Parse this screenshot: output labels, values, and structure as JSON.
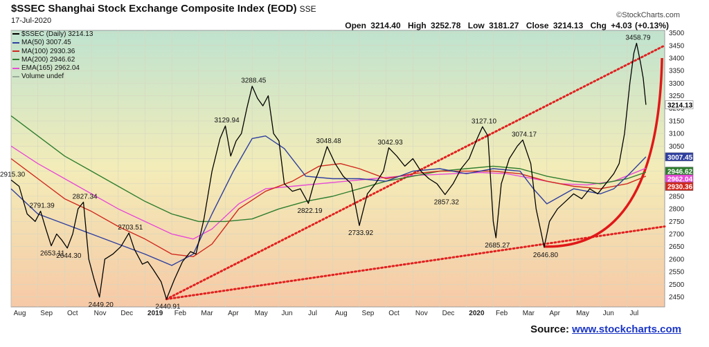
{
  "header": {
    "symbol": "$SSEC",
    "name": "Shanghai Stock Exchange Composite Index (EOD)",
    "exchange": "SSE",
    "date": "17-Jul-2020",
    "brand": "©StockCharts.com",
    "open_label": "Open",
    "open": "3214.40",
    "high_label": "High",
    "high": "3252.78",
    "low_label": "Low",
    "low": "3181.27",
    "close_label": "Close",
    "close": "3214.13",
    "chg_label": "Chg",
    "chg": "+4.03 (+0.13%)"
  },
  "legend": [
    {
      "label": "$SSEC (Daily) 3214.13",
      "color": "#000000"
    },
    {
      "label": "MA(50) 3007.45",
      "color": "#2f3fa0"
    },
    {
      "label": "MA(100) 2930.36",
      "color": "#d0281e"
    },
    {
      "label": "MA(200) 2946.62",
      "color": "#2e7d2e"
    },
    {
      "label": "EMA(165) 2962.04",
      "color": "#e84ad6"
    },
    {
      "label": "Volume undef",
      "color": "#9aa89a"
    }
  ],
  "source": {
    "label": "Source:",
    "link": "www.stockcharts.com"
  },
  "chart_data": {
    "type": "line",
    "title": "Shanghai Stock Exchange Composite Index (EOD)",
    "ylim": [
      2410,
      3510
    ],
    "yticks": [
      2450,
      2500,
      2550,
      2600,
      2650,
      2700,
      2750,
      2800,
      2850,
      2900,
      2950,
      3000,
      3050,
      3100,
      3150,
      3200,
      3250,
      3300,
      3350,
      3400,
      3450,
      3500
    ],
    "x_range_months": [
      0,
      24.4
    ],
    "month_ticks": [
      {
        "label": "Aug",
        "m": 0.3
      },
      {
        "label": "Sep",
        "m": 1.3
      },
      {
        "label": "Oct",
        "m": 2.3
      },
      {
        "label": "Nov",
        "m": 3.3
      },
      {
        "label": "Dec",
        "m": 4.3
      },
      {
        "label": "2019",
        "m": 5.3,
        "bold": true
      },
      {
        "label": "Feb",
        "m": 6.3
      },
      {
        "label": "Mar",
        "m": 7.3
      },
      {
        "label": "Apr",
        "m": 8.3
      },
      {
        "label": "May",
        "m": 9.3
      },
      {
        "label": "Jun",
        "m": 10.3
      },
      {
        "label": "Jul",
        "m": 11.3
      },
      {
        "label": "Aug",
        "m": 12.3
      },
      {
        "label": "Sep",
        "m": 13.3
      },
      {
        "label": "Oct",
        "m": 14.3
      },
      {
        "label": "Nov",
        "m": 15.3
      },
      {
        "label": "Dec",
        "m": 16.3
      },
      {
        "label": "2020",
        "m": 17.3,
        "bold": true
      },
      {
        "label": "Feb",
        "m": 18.3
      },
      {
        "label": "Mar",
        "m": 19.3
      },
      {
        "label": "Apr",
        "m": 20.3
      },
      {
        "label": "May",
        "m": 21.3
      },
      {
        "label": "Jun",
        "m": 22.3
      },
      {
        "label": "Jul",
        "m": 23.3
      }
    ],
    "series": [
      {
        "name": "$SSEC (Daily)",
        "color": "#000000",
        "points": [
          [
            0,
            2915
          ],
          [
            0.3,
            2890
          ],
          [
            0.6,
            2780
          ],
          [
            0.9,
            2750
          ],
          [
            1.1,
            2791
          ],
          [
            1.3,
            2720
          ],
          [
            1.5,
            2653
          ],
          [
            1.7,
            2700
          ],
          [
            1.9,
            2675
          ],
          [
            2.1,
            2644
          ],
          [
            2.3,
            2700
          ],
          [
            2.5,
            2800
          ],
          [
            2.7,
            2827
          ],
          [
            2.9,
            2600
          ],
          [
            3.1,
            2520
          ],
          [
            3.3,
            2449
          ],
          [
            3.5,
            2600
          ],
          [
            3.8,
            2620
          ],
          [
            4.1,
            2650
          ],
          [
            4.4,
            2704
          ],
          [
            4.6,
            2640
          ],
          [
            4.9,
            2580
          ],
          [
            5.1,
            2590
          ],
          [
            5.3,
            2560
          ],
          [
            5.6,
            2510
          ],
          [
            5.8,
            2441
          ],
          [
            6.1,
            2520
          ],
          [
            6.4,
            2590
          ],
          [
            6.7,
            2630
          ],
          [
            6.9,
            2620
          ],
          [
            7.2,
            2760
          ],
          [
            7.5,
            2950
          ],
          [
            7.8,
            3080
          ],
          [
            8.0,
            3130
          ],
          [
            8.2,
            3010
          ],
          [
            8.4,
            3070
          ],
          [
            8.6,
            3100
          ],
          [
            8.8,
            3200
          ],
          [
            9.0,
            3288
          ],
          [
            9.2,
            3240
          ],
          [
            9.4,
            3210
          ],
          [
            9.6,
            3250
          ],
          [
            9.8,
            3100
          ],
          [
            10.0,
            3070
          ],
          [
            10.2,
            2900
          ],
          [
            10.5,
            2870
          ],
          [
            10.8,
            2880
          ],
          [
            11.1,
            2822
          ],
          [
            11.3,
            2900
          ],
          [
            11.6,
            2980
          ],
          [
            11.8,
            3048
          ],
          [
            12.1,
            2980
          ],
          [
            12.4,
            2930
          ],
          [
            12.7,
            2900
          ],
          [
            13.0,
            2734
          ],
          [
            13.3,
            2860
          ],
          [
            13.6,
            2900
          ],
          [
            13.9,
            2950
          ],
          [
            14.1,
            3043
          ],
          [
            14.4,
            3010
          ],
          [
            14.7,
            2970
          ],
          [
            15.0,
            3000
          ],
          [
            15.3,
            2950
          ],
          [
            15.6,
            2920
          ],
          [
            15.9,
            2900
          ],
          [
            16.2,
            2857
          ],
          [
            16.5,
            2900
          ],
          [
            16.8,
            2960
          ],
          [
            17.1,
            3000
          ],
          [
            17.4,
            3080
          ],
          [
            17.6,
            3127
          ],
          [
            17.8,
            3090
          ],
          [
            18.0,
            2750
          ],
          [
            18.1,
            2685
          ],
          [
            18.3,
            2900
          ],
          [
            18.6,
            3000
          ],
          [
            18.9,
            3050
          ],
          [
            19.1,
            3074
          ],
          [
            19.4,
            2980
          ],
          [
            19.6,
            2800
          ],
          [
            19.8,
            2700
          ],
          [
            19.9,
            2647
          ],
          [
            20.1,
            2750
          ],
          [
            20.4,
            2800
          ],
          [
            20.7,
            2830
          ],
          [
            21.0,
            2860
          ],
          [
            21.3,
            2840
          ],
          [
            21.6,
            2880
          ],
          [
            21.9,
            2860
          ],
          [
            22.2,
            2900
          ],
          [
            22.5,
            2940
          ],
          [
            22.7,
            2980
          ],
          [
            22.9,
            3100
          ],
          [
            23.1,
            3300
          ],
          [
            23.25,
            3420
          ],
          [
            23.35,
            3459
          ],
          [
            23.5,
            3380
          ],
          [
            23.6,
            3320
          ],
          [
            23.7,
            3214
          ]
        ]
      },
      {
        "name": "MA(50)",
        "color": "#2f3fa0",
        "points": [
          [
            0,
            2880
          ],
          [
            1,
            2780
          ],
          [
            2,
            2740
          ],
          [
            3,
            2700
          ],
          [
            4,
            2660
          ],
          [
            5,
            2620
          ],
          [
            6,
            2575
          ],
          [
            6.8,
            2620
          ],
          [
            7.5,
            2780
          ],
          [
            8.3,
            2950
          ],
          [
            9.0,
            3080
          ],
          [
            9.5,
            3090
          ],
          [
            10.2,
            3040
          ],
          [
            11.0,
            2930
          ],
          [
            12,
            2920
          ],
          [
            13,
            2920
          ],
          [
            14,
            2910
          ],
          [
            15,
            2950
          ],
          [
            16,
            2960
          ],
          [
            17,
            2940
          ],
          [
            18,
            2960
          ],
          [
            19,
            2950
          ],
          [
            19.5,
            2880
          ],
          [
            20,
            2820
          ],
          [
            20.5,
            2850
          ],
          [
            21,
            2880
          ],
          [
            21.5,
            2870
          ],
          [
            22,
            2860
          ],
          [
            22.5,
            2880
          ],
          [
            23,
            2930
          ],
          [
            23.7,
            3007
          ]
        ]
      },
      {
        "name": "MA(100)",
        "color": "#d0281e",
        "points": [
          [
            0,
            3000
          ],
          [
            1,
            2920
          ],
          [
            2,
            2840
          ],
          [
            3,
            2790
          ],
          [
            4,
            2730
          ],
          [
            5,
            2680
          ],
          [
            6,
            2620
          ],
          [
            6.8,
            2610
          ],
          [
            7.5,
            2660
          ],
          [
            8.5,
            2800
          ],
          [
            9.5,
            2870
          ],
          [
            10.5,
            2910
          ],
          [
            11.5,
            2970
          ],
          [
            12.3,
            2980
          ],
          [
            13,
            2960
          ],
          [
            14,
            2920
          ],
          [
            15,
            2940
          ],
          [
            16,
            2950
          ],
          [
            17,
            2950
          ],
          [
            18,
            2950
          ],
          [
            19,
            2940
          ],
          [
            20,
            2910
          ],
          [
            21,
            2890
          ],
          [
            22,
            2880
          ],
          [
            23,
            2900
          ],
          [
            23.7,
            2930
          ]
        ]
      },
      {
        "name": "MA(200)",
        "color": "#2e7d2e",
        "points": [
          [
            0,
            3170
          ],
          [
            1,
            3090
          ],
          [
            2,
            3010
          ],
          [
            3,
            2950
          ],
          [
            4,
            2890
          ],
          [
            5,
            2830
          ],
          [
            6,
            2780
          ],
          [
            7,
            2750
          ],
          [
            8,
            2750
          ],
          [
            9,
            2760
          ],
          [
            10,
            2800
          ],
          [
            11,
            2830
          ],
          [
            12,
            2850
          ],
          [
            13,
            2880
          ],
          [
            14,
            2910
          ],
          [
            15,
            2930
          ],
          [
            16,
            2950
          ],
          [
            17,
            2960
          ],
          [
            18,
            2970
          ],
          [
            19,
            2960
          ],
          [
            20,
            2930
          ],
          [
            21,
            2910
          ],
          [
            22,
            2900
          ],
          [
            23,
            2920
          ],
          [
            23.7,
            2946
          ]
        ]
      },
      {
        "name": "EMA(165)",
        "color": "#e84ad6",
        "points": [
          [
            0,
            3050
          ],
          [
            1,
            2980
          ],
          [
            2,
            2920
          ],
          [
            3,
            2860
          ],
          [
            4,
            2800
          ],
          [
            5,
            2750
          ],
          [
            6,
            2700
          ],
          [
            6.8,
            2680
          ],
          [
            7.5,
            2720
          ],
          [
            8.5,
            2820
          ],
          [
            9.5,
            2880
          ],
          [
            10.5,
            2890
          ],
          [
            11.5,
            2900
          ],
          [
            12.5,
            2910
          ],
          [
            13.5,
            2920
          ],
          [
            14.5,
            2930
          ],
          [
            15.5,
            2935
          ],
          [
            16.5,
            2940
          ],
          [
            17.5,
            2945
          ],
          [
            18.5,
            2940
          ],
          [
            19.5,
            2920
          ],
          [
            20.5,
            2900
          ],
          [
            21.5,
            2895
          ],
          [
            22.5,
            2910
          ],
          [
            23.7,
            2962
          ]
        ]
      }
    ],
    "annotations": [
      {
        "label": "2915.30",
        "m": 0,
        "v": 2915,
        "pos": "above"
      },
      {
        "label": "2791.39",
        "m": 1.1,
        "v": 2791,
        "pos": "above"
      },
      {
        "label": "2827.34",
        "m": 2.7,
        "v": 2827,
        "pos": "above"
      },
      {
        "label": "2653.11",
        "m": 1.5,
        "v": 2653,
        "pos": "below"
      },
      {
        "label": "2644.30",
        "m": 2.1,
        "v": 2644,
        "pos": "below"
      },
      {
        "label": "2703.51",
        "m": 4.4,
        "v": 2704,
        "pos": "above"
      },
      {
        "label": "2449.20",
        "m": 3.3,
        "v": 2449,
        "pos": "below"
      },
      {
        "label": "2440.91",
        "m": 5.8,
        "v": 2441,
        "pos": "below"
      },
      {
        "label": "3129.94",
        "m": 8.0,
        "v": 3130,
        "pos": "above"
      },
      {
        "label": "3288.45",
        "m": 9.0,
        "v": 3288,
        "pos": "above"
      },
      {
        "label": "2822.19",
        "m": 11.1,
        "v": 2822,
        "pos": "below"
      },
      {
        "label": "3048.48",
        "m": 11.8,
        "v": 3048,
        "pos": "above"
      },
      {
        "label": "2733.92",
        "m": 13.0,
        "v": 2734,
        "pos": "below"
      },
      {
        "label": "3042.93",
        "m": 14.1,
        "v": 3043,
        "pos": "above"
      },
      {
        "label": "2857.32",
        "m": 16.2,
        "v": 2857,
        "pos": "below"
      },
      {
        "label": "3127.10",
        "m": 17.6,
        "v": 3127,
        "pos": "above"
      },
      {
        "label": "2685.27",
        "m": 18.1,
        "v": 2685,
        "pos": "below"
      },
      {
        "label": "3074.17",
        "m": 19.1,
        "v": 3074,
        "pos": "above"
      },
      {
        "label": "2646.80",
        "m": 19.9,
        "v": 2647,
        "pos": "below"
      },
      {
        "label": "3458.79",
        "m": 23.35,
        "v": 3459,
        "pos": "above"
      }
    ],
    "trendlines": [
      {
        "from": [
          5.8,
          2441
        ],
        "to": [
          24.4,
          3450
        ],
        "color": "#e02020",
        "style": "dotted"
      },
      {
        "from": [
          5.8,
          2441
        ],
        "to": [
          24.4,
          2730
        ],
        "color": "#e02020",
        "style": "dotted"
      }
    ],
    "curve": {
      "from": [
        19.9,
        2650
      ],
      "to": [
        24.3,
        3400
      ],
      "color": "#e01818"
    },
    "right_badges": [
      {
        "label": "3214.13",
        "v": 3214,
        "fill": "#ffffff",
        "text": "#000000"
      },
      {
        "label": "3007.45",
        "v": 3007,
        "fill": "#2f3fa0",
        "text": "#ffffff"
      },
      {
        "label": "2946.62",
        "v": 2950,
        "fill": "#2e7d2e",
        "text": "#ffffff"
      },
      {
        "label": "2962.04",
        "v": 2962,
        "fill": "#e84ad6",
        "text": "#ffffff"
      },
      {
        "label": "2930.36",
        "v": 2930,
        "fill": "#d0281e",
        "text": "#ffffff"
      }
    ]
  }
}
